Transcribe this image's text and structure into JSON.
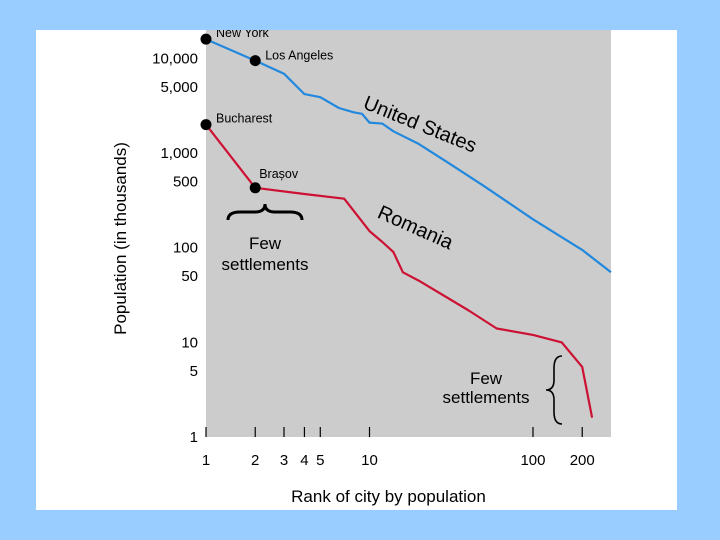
{
  "chart_data": {
    "type": "line",
    "title": "",
    "xlabel": "Rank of city by population",
    "ylabel": "Population (in thousands)",
    "x_scale": "log",
    "y_scale": "log",
    "xlim": [
      1,
      300
    ],
    "ylim": [
      1,
      20000
    ],
    "x_ticks": [
      {
        "value": 1,
        "label": "1"
      },
      {
        "value": 2,
        "label": "2"
      },
      {
        "value": 3,
        "label": "3"
      },
      {
        "value": 4,
        "label": "4"
      },
      {
        "value": 5,
        "label": "5"
      },
      {
        "value": 10,
        "label": "10"
      },
      {
        "value": 100,
        "label": "100"
      },
      {
        "value": 200,
        "label": "200"
      }
    ],
    "y_ticks": [
      {
        "value": 1,
        "label": "1"
      },
      {
        "value": 5,
        "label": "5"
      },
      {
        "value": 10,
        "label": "10"
      },
      {
        "value": 50,
        "label": "50"
      },
      {
        "value": 100,
        "label": "100"
      },
      {
        "value": 500,
        "label": "500"
      },
      {
        "value": 1000,
        "label": "1,000"
      },
      {
        "value": 5000,
        "label": "5,000"
      },
      {
        "value": 10000,
        "label": "10,000"
      }
    ],
    "grid": false,
    "plot_background": "#cccccc",
    "series": [
      {
        "name": "United States",
        "color": "#2288dd",
        "points": [
          [
            1,
            16000
          ],
          [
            2,
            9500
          ],
          [
            3,
            6900
          ],
          [
            4,
            4200
          ],
          [
            5,
            3900
          ],
          [
            6.5,
            3000
          ],
          [
            8,
            2700
          ],
          [
            9,
            2600
          ],
          [
            10,
            2100
          ],
          [
            12,
            2050
          ],
          [
            14,
            1700
          ],
          [
            20,
            1250
          ],
          [
            30,
            800
          ],
          [
            50,
            450
          ],
          [
            100,
            200
          ],
          [
            200,
            95
          ],
          [
            300,
            55
          ]
        ]
      },
      {
        "name": "Romania",
        "color": "#cc1133",
        "points": [
          [
            1,
            2000
          ],
          [
            2,
            430
          ],
          [
            4,
            370
          ],
          [
            7,
            330
          ],
          [
            10,
            150
          ],
          [
            12,
            115
          ],
          [
            14,
            90
          ],
          [
            16,
            55
          ],
          [
            20,
            45
          ],
          [
            40,
            22
          ],
          [
            60,
            14
          ],
          [
            100,
            12
          ],
          [
            150,
            10
          ],
          [
            200,
            5.5
          ],
          [
            230,
            1.6
          ]
        ]
      }
    ],
    "highlighted_points": [
      {
        "label": "New York",
        "x": 1,
        "y": 16000
      },
      {
        "label": "Los Angeles",
        "x": 2,
        "y": 9500
      },
      {
        "label": "Bucharest",
        "x": 1,
        "y": 2000
      },
      {
        "label": "Brașov",
        "x": 2,
        "y": 430
      }
    ],
    "annotations": [
      {
        "id": "few-left",
        "line1": "Few",
        "line2": "settlements"
      },
      {
        "id": "few-right",
        "line1": "Few",
        "line2": "settlements"
      }
    ],
    "colors": {
      "page_background": "#99ccff",
      "slide_background": "#ffffff",
      "plot_background": "#cccccc"
    }
  }
}
